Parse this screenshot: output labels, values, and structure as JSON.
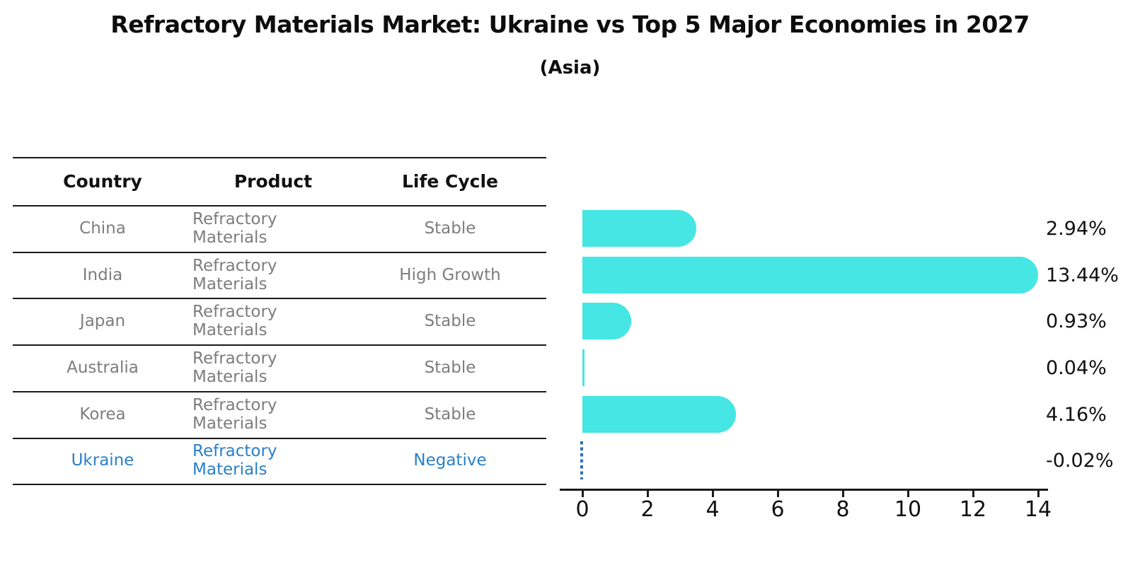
{
  "title": "Refractory Materials Market: Ukraine vs Top 5 Major Economies in 2027",
  "subtitle": "(Asia)",
  "colors": {
    "bar_cyan": "#45e6e3",
    "highlight_blue": "#2a80c9",
    "dash_blue": "#2a72c0",
    "table_text_gray": "#7d7d7d",
    "text_black": "#111111"
  },
  "table": {
    "columns": [
      "Country",
      "Product",
      "Life Cycle"
    ],
    "rows": [
      {
        "country": "China",
        "product": "Refractory Materials",
        "life_cycle": "Stable",
        "highlight": false
      },
      {
        "country": "India",
        "product": "Refractory Materials",
        "life_cycle": "High Growth",
        "highlight": false
      },
      {
        "country": "Japan",
        "product": "Refractory Materials",
        "life_cycle": "Stable",
        "highlight": false
      },
      {
        "country": "Australia",
        "product": "Refractory Materials",
        "life_cycle": "Stable",
        "highlight": false
      },
      {
        "country": "Korea",
        "product": "Refractory Materials",
        "life_cycle": "Stable",
        "highlight": false
      },
      {
        "country": "Ukraine",
        "product": "Refractory Materials",
        "life_cycle": "Negative",
        "highlight": true
      }
    ]
  },
  "chart_data": {
    "type": "bar",
    "orientation": "horizontal",
    "title": "Refractory Materials Market: Ukraine vs Top 5 Major Economies in 2027 (Asia)",
    "categories": [
      "China",
      "India",
      "Japan",
      "Australia",
      "Korea",
      "Ukraine"
    ],
    "values": [
      2.94,
      13.44,
      0.93,
      0.04,
      4.16,
      -0.02
    ],
    "value_labels": [
      "2.94%",
      "13.44%",
      "0.93%",
      "0.04%",
      "4.16%",
      "-0.02%"
    ],
    "highlight_index": 5,
    "highlight_style": "dashed-blue-zero-line",
    "xlabel": "",
    "ylabel": "",
    "xlim": [
      0,
      14
    ],
    "xticks": [
      0,
      2,
      4,
      6,
      8,
      10,
      12,
      14
    ],
    "grid": false,
    "legend": "none",
    "bar_color": "#45e6e3"
  }
}
